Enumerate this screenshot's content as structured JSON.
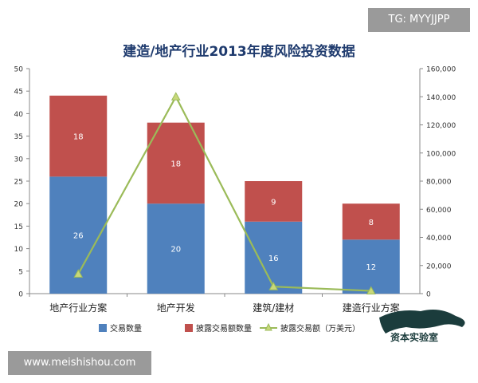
{
  "chart_data": {
    "type": "bar",
    "title": "建造/地产行业2013年度风险投资数据",
    "categories": [
      "地产行业方案",
      "地产开发",
      "建筑/建材",
      "建造行业方案"
    ],
    "series": [
      {
        "name": "交易数量",
        "type": "bar",
        "axis": "left",
        "stack": "s",
        "color": "#4f81bd",
        "values": [
          26,
          20,
          16,
          12
        ]
      },
      {
        "name": "披露交易额数量",
        "type": "bar",
        "axis": "left",
        "stack": "s",
        "color": "#c0504d",
        "values": [
          18,
          18,
          9,
          8
        ]
      },
      {
        "name": "披露交易额（万美元）",
        "type": "line",
        "axis": "right",
        "color": "#9bbb59",
        "values": [
          14000,
          140000,
          5000,
          2000
        ]
      }
    ],
    "y_left": {
      "min": 0,
      "max": 50,
      "ticks": [
        "0",
        "5",
        "10",
        "15",
        "20",
        "25",
        "30",
        "35",
        "40",
        "45",
        "50"
      ]
    },
    "y_right": {
      "min": 0,
      "max": 160000,
      "ticks": [
        "0",
        "20,000",
        "40,000",
        "60,000",
        "80,000",
        "100,000",
        "120,000",
        "140,000",
        "160,000"
      ]
    },
    "grid": false,
    "legend_position": "bottom"
  },
  "watermark": {
    "tag": "TG: MYYJJPP",
    "site": "www.meishishou.com",
    "logo_text": "资本实验室"
  }
}
